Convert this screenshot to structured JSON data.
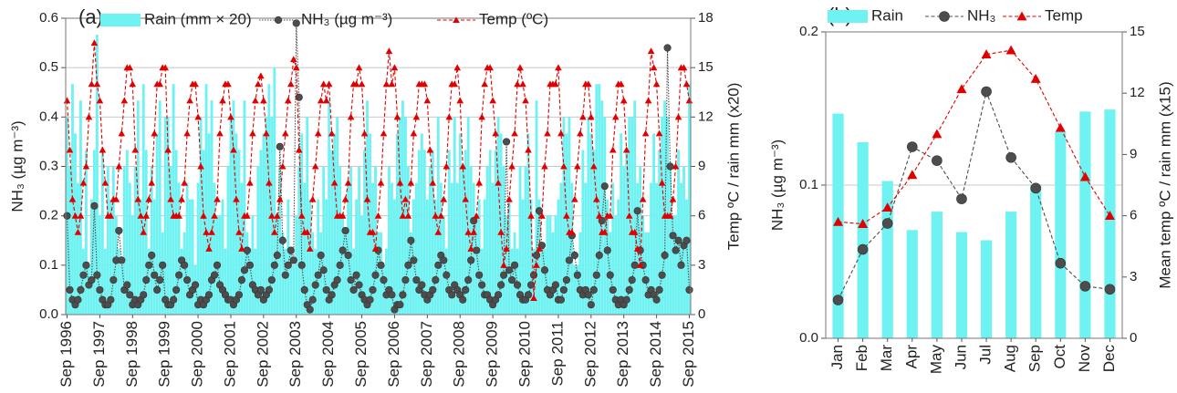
{
  "chart_data": [
    {
      "type": "bar-line",
      "title": "(a)",
      "y_label": "NH₃ (µg m⁻³)",
      "y2_label": "Temp ºC / rain mm (x20)",
      "categories": [
        "Sep 1996",
        null,
        null,
        null,
        null,
        null,
        null,
        null,
        null,
        null,
        null,
        null,
        "Sep 1997",
        null,
        null,
        null,
        null,
        null,
        null,
        null,
        null,
        null,
        null,
        null,
        "Sep 1998",
        null,
        null,
        null,
        null,
        null,
        null,
        null,
        null,
        null,
        null,
        null,
        "Sep 1999",
        null,
        null,
        null,
        null,
        null,
        null,
        null,
        null,
        null,
        null,
        null,
        "Sep 2000",
        null,
        null,
        null,
        null,
        null,
        null,
        null,
        null,
        null,
        null,
        null,
        "Sep 2001",
        null,
        null,
        null,
        null,
        null,
        null,
        null,
        null,
        null,
        null,
        null,
        "Sep 2002",
        null,
        null,
        null,
        null,
        null,
        null,
        null,
        null,
        null,
        null,
        null,
        "Sep 2003",
        null,
        null,
        null,
        null,
        null,
        null,
        null,
        null,
        null,
        null,
        null,
        "Sep 2004",
        null,
        null,
        null,
        null,
        null,
        null,
        null,
        null,
        null,
        null,
        null,
        "Sep 2005",
        null,
        null,
        null,
        null,
        null,
        null,
        null,
        null,
        null,
        null,
        null,
        "Sep 2006",
        null,
        null,
        null,
        null,
        null,
        null,
        null,
        null,
        null,
        null,
        null,
        "Sep 2007",
        null,
        null,
        null,
        null,
        null,
        null,
        null,
        null,
        null,
        null,
        null,
        "Sep 2008",
        null,
        null,
        null,
        null,
        null,
        null,
        null,
        null,
        null,
        null,
        null,
        "Sep 2009",
        null,
        null,
        null,
        null,
        null,
        null,
        null,
        null,
        null,
        null,
        null,
        "Sep 2010",
        null,
        null,
        null,
        null,
        null,
        null,
        null,
        null,
        null,
        null,
        null,
        "Sep 2011",
        null,
        null,
        null,
        null,
        null,
        null,
        null,
        null,
        null,
        null,
        null,
        "Sep 2012",
        null,
        null,
        null,
        null,
        null,
        null,
        null,
        null,
        null,
        null,
        null,
        "Sep 2013",
        null,
        null,
        null,
        null,
        null,
        null,
        null,
        null,
        null,
        null,
        null,
        "Sep 2014",
        null,
        null,
        null,
        null,
        null,
        null,
        null,
        null,
        null,
        null,
        null,
        "Sep 2015"
      ],
      "series": [
        {
          "name": "Rain (mm × 20)",
          "kind": "bar",
          "axis": "y2",
          "color": "#6ff2f2",
          "values": [
            12,
            9,
            14,
            11,
            8,
            13,
            4,
            10,
            3,
            7,
            10,
            17,
            6,
            10,
            4,
            9,
            7,
            9,
            6,
            4,
            3,
            9,
            10,
            8,
            6,
            9,
            13,
            7,
            14,
            10,
            4,
            9,
            7,
            11,
            13,
            5,
            12,
            12,
            9,
            14,
            10,
            8,
            4,
            5,
            8,
            7,
            7,
            3,
            8,
            12,
            10,
            14,
            11,
            13,
            8,
            6,
            6,
            7,
            4,
            9,
            12,
            13,
            11,
            10,
            8,
            13,
            5,
            4,
            6,
            4,
            9,
            10,
            11,
            12,
            14,
            12,
            15,
            6,
            9,
            5,
            4,
            7,
            4,
            3,
            6,
            9,
            11,
            8,
            12,
            7,
            5,
            4,
            7,
            5,
            9,
            7,
            13,
            10,
            11,
            12,
            9,
            6,
            5,
            8,
            9,
            4,
            7,
            9,
            6,
            10,
            13,
            11,
            8,
            9,
            5,
            5,
            3,
            4,
            9,
            8,
            7,
            11,
            12,
            13,
            12,
            9,
            5,
            7,
            8,
            10,
            11,
            10,
            7,
            9,
            10,
            7,
            12,
            8,
            6,
            4,
            10,
            8,
            12,
            8,
            11,
            9,
            10,
            12,
            9,
            8,
            6,
            7,
            4,
            7,
            9,
            10,
            8,
            10,
            12,
            11,
            9,
            6,
            7,
            4,
            5,
            4,
            9,
            7,
            9,
            11,
            7,
            4,
            13,
            7,
            4,
            4,
            6,
            6,
            5,
            6,
            7,
            8,
            12,
            11,
            12,
            8,
            3,
            3,
            5,
            10,
            8,
            12,
            11,
            10,
            14,
            14,
            13,
            12,
            7,
            5,
            8,
            6,
            7,
            11,
            9,
            10,
            12,
            12,
            13,
            8,
            9,
            6,
            5,
            5,
            8,
            11,
            8,
            10,
            12,
            13,
            12,
            9,
            6,
            6,
            10,
            8,
            9,
            7,
            14
          ]
        },
        {
          "name": "NH₃ (µg m⁻³)",
          "kind": "line",
          "color": "#4d4d4d",
          "marker": "circle",
          "line_style": "dotted",
          "values": [
            0.2,
            0.05,
            0.03,
            0.02,
            0.03,
            0.05,
            0.08,
            0.1,
            0.06,
            0.07,
            0.22,
            0.08,
            0.05,
            0.03,
            0.02,
            0.02,
            0.03,
            0.07,
            0.11,
            0.17,
            0.11,
            0.05,
            0.06,
            0.04,
            0.02,
            0.03,
            0.02,
            0.03,
            0.04,
            0.07,
            0.1,
            0.12,
            0.08,
            0.05,
            0.07,
            0.1,
            0.03,
            0.02,
            0.02,
            0.03,
            0.05,
            0.08,
            0.11,
            0.1,
            0.07,
            0.04,
            0.05,
            0.06,
            0.02,
            0.03,
            0.02,
            0.03,
            0.04,
            0.07,
            0.08,
            0.1,
            0.06,
            0.05,
            0.04,
            0.03,
            0.03,
            0.02,
            0.03,
            0.04,
            0.07,
            0.09,
            0.13,
            0.1,
            0.06,
            0.05,
            0.04,
            0.05,
            0.03,
            0.04,
            0.05,
            0.07,
            0.1,
            0.12,
            0.34,
            0.15,
            0.08,
            0.1,
            0.13,
            0.11,
            0.59,
            0.44,
            0.1,
            0.05,
            0.02,
            0.01,
            0.03,
            0.06,
            0.08,
            0.12,
            0.09,
            0.05,
            0.03,
            0.04,
            0.06,
            0.07,
            0.1,
            0.13,
            0.17,
            0.12,
            0.07,
            0.05,
            0.08,
            0.06,
            0.04,
            0.03,
            0.02,
            0.03,
            0.05,
            0.08,
            0.13,
            0.1,
            0.07,
            0.04,
            0.05,
            0.04,
            0.01,
            0.02,
            0.02,
            0.04,
            0.07,
            0.1,
            0.15,
            0.11,
            0.07,
            0.05,
            0.06,
            0.04,
            0.03,
            0.04,
            0.05,
            0.07,
            0.1,
            0.12,
            0.11,
            0.08,
            0.05,
            0.04,
            0.06,
            0.05,
            0.04,
            0.03,
            0.05,
            0.07,
            0.11,
            0.19,
            0.13,
            0.08,
            0.06,
            0.04,
            0.04,
            0.03,
            0.02,
            0.03,
            0.04,
            0.06,
            0.08,
            0.35,
            0.09,
            0.07,
            0.1,
            0.06,
            0.04,
            0.03,
            0.03,
            0.04,
            0.06,
            0.08,
            0.12,
            0.21,
            0.14,
            0.09,
            0.05,
            0.04,
            0.05,
            0.06,
            0.03,
            0.03,
            0.05,
            0.07,
            0.11,
            0.16,
            0.12,
            0.08,
            0.05,
            0.04,
            0.05,
            0.04,
            0.02,
            0.05,
            0.08,
            0.12,
            0.19,
            0.26,
            0.13,
            0.08,
            0.05,
            0.03,
            0.02,
            0.03,
            0.02,
            0.03,
            0.05,
            0.07,
            0.1,
            0.21,
            0.13,
            0.1,
            0.07,
            0.04,
            0.05,
            0.04,
            0.03,
            0.05,
            0.08,
            0.12,
            0.54,
            0.3,
            0.16,
            0.13,
            0.15,
            0.1,
            0.14,
            0.15,
            0.05
          ]
        },
        {
          "name": "Temp (ºC)",
          "kind": "line",
          "axis": "y2",
          "color": "#e00000",
          "marker": "triangle",
          "line_style": "dashed",
          "values": [
            13,
            10,
            7,
            6,
            5,
            6,
            8,
            9,
            12,
            14,
            16.5,
            14,
            13,
            10,
            8,
            6,
            6,
            7,
            7,
            9,
            11,
            13,
            15,
            15,
            14,
            10,
            7,
            6,
            5,
            6,
            7,
            8,
            11,
            14,
            14,
            15,
            15,
            10,
            7,
            6,
            6,
            6,
            7,
            8,
            11,
            13,
            14,
            14,
            12,
            9,
            6,
            5,
            4,
            5,
            6,
            7,
            11,
            13,
            14,
            14,
            12,
            10,
            7,
            5,
            4,
            6,
            6,
            8,
            11,
            13,
            14,
            14.5,
            13,
            11,
            8,
            6,
            5,
            6,
            7,
            9,
            11,
            13,
            14,
            15.5,
            15,
            10,
            6,
            5,
            5,
            4,
            7,
            9,
            11,
            13,
            14,
            13,
            14,
            11,
            8,
            6,
            6,
            6,
            7,
            8,
            12,
            14,
            14,
            15,
            14,
            11,
            7,
            5,
            5,
            4,
            6,
            8,
            11,
            14,
            16,
            14,
            15,
            12,
            8,
            6,
            7,
            6,
            8,
            11,
            12,
            14,
            14,
            14,
            13,
            10,
            8,
            6,
            5,
            6,
            7,
            9,
            12,
            14,
            14,
            15,
            13,
            9,
            7,
            5,
            4,
            5,
            6,
            8,
            12,
            14,
            15,
            15,
            13,
            11,
            8,
            5,
            3,
            4,
            7,
            9,
            11,
            14,
            15,
            14,
            13,
            10,
            6,
            1,
            3,
            4,
            6,
            9,
            11,
            14,
            14,
            14,
            15,
            11,
            9,
            6,
            5,
            5,
            7,
            9,
            11,
            12,
            14,
            14,
            12,
            9,
            7,
            6,
            5,
            5,
            6,
            6,
            10,
            12,
            14,
            14,
            13,
            10,
            6,
            5,
            5,
            4,
            3,
            7,
            11,
            13,
            16,
            15,
            14,
            11,
            8,
            6,
            6,
            6,
            7,
            9,
            12,
            15,
            15,
            14,
            13
          ]
        }
      ],
      "ylim": [
        0,
        0.6
      ],
      "yticks": [
        {
          "value": 0,
          "label": "0.0"
        },
        0.1,
        0.2,
        0.3,
        0.4,
        0.5,
        0.6
      ],
      "y2lim": [
        0,
        18
      ],
      "y2ticks": [
        0,
        3,
        6,
        9,
        12,
        15,
        18
      ],
      "grid": true
    },
    {
      "type": "bar-line",
      "title": "(b)",
      "y_label": "NH₃ (µg m⁻³)",
      "y2_label": "Mean temp ºC / rain mm (x15)",
      "categories": [
        "Jan",
        "Feb",
        "Mar",
        "Apr",
        "May",
        "Jun",
        "Jul",
        "Aug",
        "Sep",
        "Oct",
        "Nov",
        "Dec"
      ],
      "series": [
        {
          "name": "Rain",
          "kind": "bar",
          "axis": "y2",
          "color": "#6ff2f2",
          "values": [
            11,
            9.6,
            7.7,
            5.3,
            6.2,
            5.2,
            4.8,
            6.2,
            7.5,
            10.1,
            11.1,
            11.2
          ]
        },
        {
          "name": "NH₃",
          "kind": "line",
          "color": "#4d4d4d",
          "marker": "circle",
          "line_style": "dashed",
          "values": [
            0.025,
            0.058,
            0.075,
            0.125,
            0.116,
            0.091,
            0.161,
            0.118,
            0.098,
            0.049,
            0.034,
            0.032
          ]
        },
        {
          "name": "Temp",
          "kind": "line",
          "axis": "y2",
          "color": "#e00000",
          "marker": "triangle",
          "line_style": "dashed",
          "values": [
            5.7,
            5.6,
            6.4,
            8.0,
            10.0,
            12.2,
            13.9,
            14.1,
            12.7,
            10.3,
            7.9,
            6.0
          ]
        }
      ],
      "ylim": [
        0,
        0.2
      ],
      "yticks": [
        {
          "value": 0,
          "label": "0.0"
        },
        0.1,
        0.2
      ],
      "y2lim": [
        0,
        15
      ],
      "y2ticks": [
        0,
        3,
        6,
        9,
        12,
        15
      ],
      "grid": true
    }
  ]
}
